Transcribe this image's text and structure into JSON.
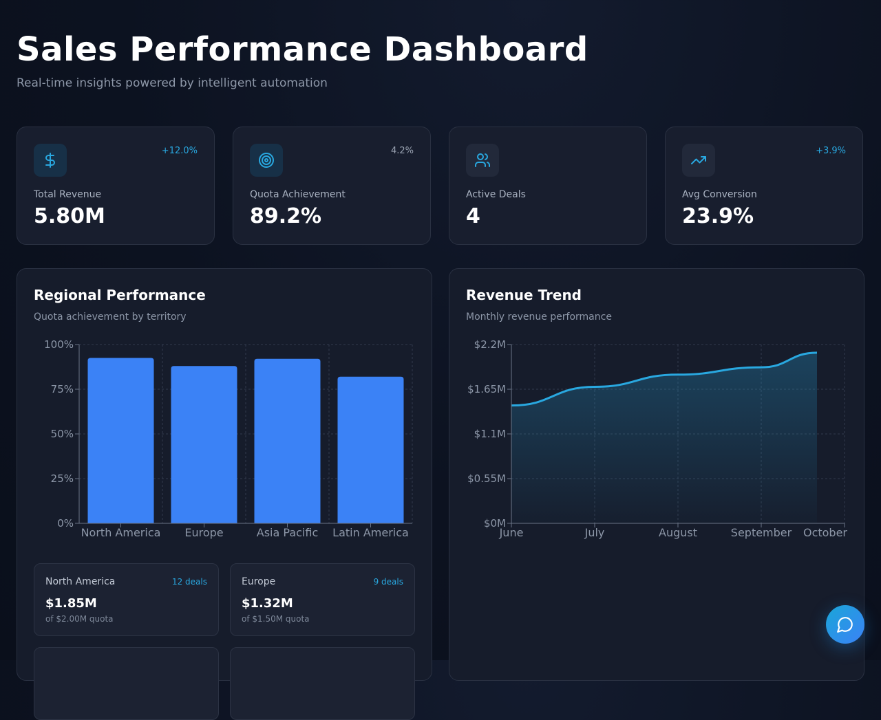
{
  "header": {
    "title": "Sales Performance Dashboard",
    "subtitle": "Real-time insights powered by intelligent automation"
  },
  "kpis": [
    {
      "label": "Total Revenue",
      "value": "5.80M",
      "change": "+12.0%",
      "icon": "dollar-icon",
      "change_color": "#29a8e0"
    },
    {
      "label": "Quota Achievement",
      "value": "89.2%",
      "change": "4.2%",
      "icon": "target-icon",
      "change_color": "#9aa3b2"
    },
    {
      "label": "Active Deals",
      "value": "4",
      "icon": "users-icon"
    },
    {
      "label": "Avg Conversion",
      "value": "23.9%",
      "change": "+3.9%",
      "icon": "trending-up-icon",
      "change_color": "#29a8e0"
    }
  ],
  "regional": {
    "title": "Regional Performance",
    "subtitle": "Quota achievement by territory",
    "cards": [
      {
        "name": "North America",
        "deals": "12 deals",
        "value": "$1.85M",
        "quota": "of $2.00M quota"
      },
      {
        "name": "Europe",
        "deals": "9 deals",
        "value": "$1.32M",
        "quota": "of $1.50M quota"
      }
    ]
  },
  "trend": {
    "title": "Revenue Trend",
    "subtitle": "Monthly revenue performance"
  },
  "chart_data": [
    {
      "type": "bar",
      "categories": [
        "North America",
        "Europe",
        "Asia Pacific",
        "Latin America"
      ],
      "values": [
        92.5,
        88,
        92,
        82
      ],
      "ylim": [
        0,
        100
      ],
      "yticks": [
        "0%",
        "25%",
        "50%",
        "75%",
        "100%"
      ],
      "grid": true,
      "color": "#3b82f6"
    },
    {
      "type": "area",
      "categories": [
        "June",
        "July",
        "August",
        "September",
        "October"
      ],
      "values": [
        1.45,
        1.68,
        1.83,
        1.92,
        2.1
      ],
      "ylim": [
        0,
        2.2
      ],
      "yticks": [
        "$0M",
        "$0.55M",
        "$1.1M",
        "$1.65M",
        "$2.2M"
      ],
      "grid": true,
      "color": "#29a8e0"
    }
  ],
  "colors": {
    "accent": "#29a8e0",
    "bar": "#3b82f6",
    "card_bg": "#181e2e"
  },
  "chat": {
    "icon": "chat-bubble-icon"
  }
}
